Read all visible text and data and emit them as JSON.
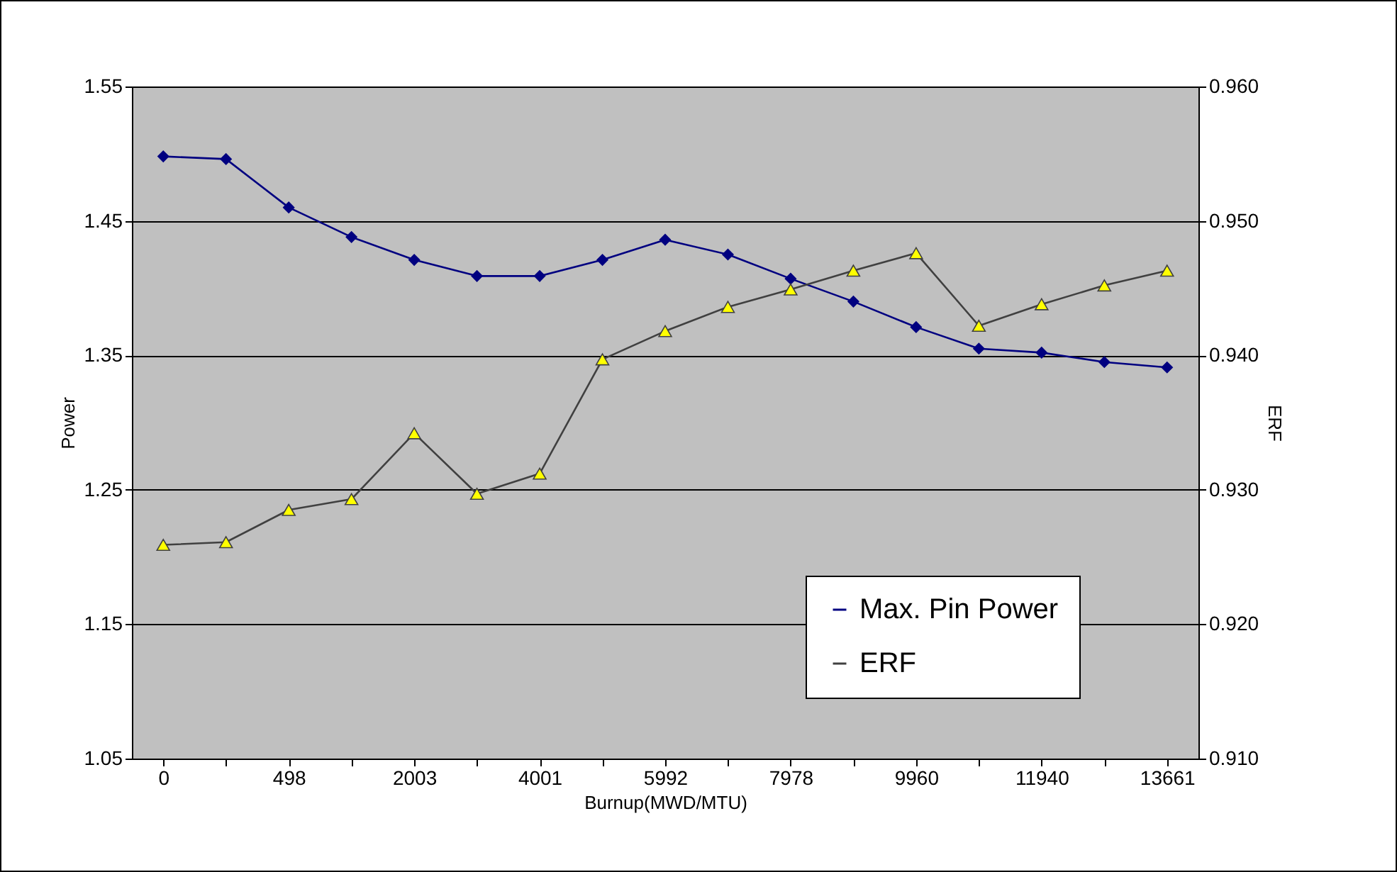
{
  "chart_data": {
    "type": "line",
    "xlabel": "Burnup(MWD/MTU)",
    "ylabel": "Power",
    "y2label": "ERF",
    "categories": [
      "0",
      null,
      "498",
      null,
      "2003",
      null,
      "4001",
      null,
      "5992",
      null,
      "7978",
      null,
      "9960",
      null,
      "11940",
      null,
      "13661"
    ],
    "series": [
      {
        "name": "Max. Pin Power",
        "color": "#000080",
        "marker": "diamond",
        "values": [
          1.498,
          1.496,
          1.46,
          1.438,
          1.421,
          1.409,
          1.409,
          1.421,
          1.436,
          1.425,
          1.407,
          1.39,
          1.371,
          1.355,
          1.352,
          1.345,
          1.341
        ]
      },
      {
        "name": "ERF",
        "color": "#404040",
        "marker": "triangle",
        "axis": "y2",
        "values": [
          0.9259,
          0.9261,
          0.9285,
          0.9293,
          0.9342,
          0.9297,
          0.9312,
          0.9397,
          0.9418,
          0.9436,
          0.9449,
          0.9463,
          0.9476,
          0.9422,
          0.9438,
          0.9452,
          0.9463
        ]
      }
    ],
    "ylim": [
      1.05,
      1.55
    ],
    "yticks": [
      1.05,
      1.15,
      1.25,
      1.35,
      1.45,
      1.55
    ],
    "y2lim": [
      0.91,
      0.96
    ],
    "y2ticks": [
      {
        "value": 0.91,
        "label": "0.910"
      },
      {
        "value": 0.92,
        "label": "0.920"
      },
      {
        "value": 0.93,
        "label": "0.930"
      },
      {
        "value": 0.94,
        "label": "0.940"
      },
      {
        "value": 0.95,
        "label": "0.950"
      },
      {
        "value": 0.96,
        "label": "0.960"
      }
    ],
    "grid": "y",
    "legend": "bottom"
  }
}
